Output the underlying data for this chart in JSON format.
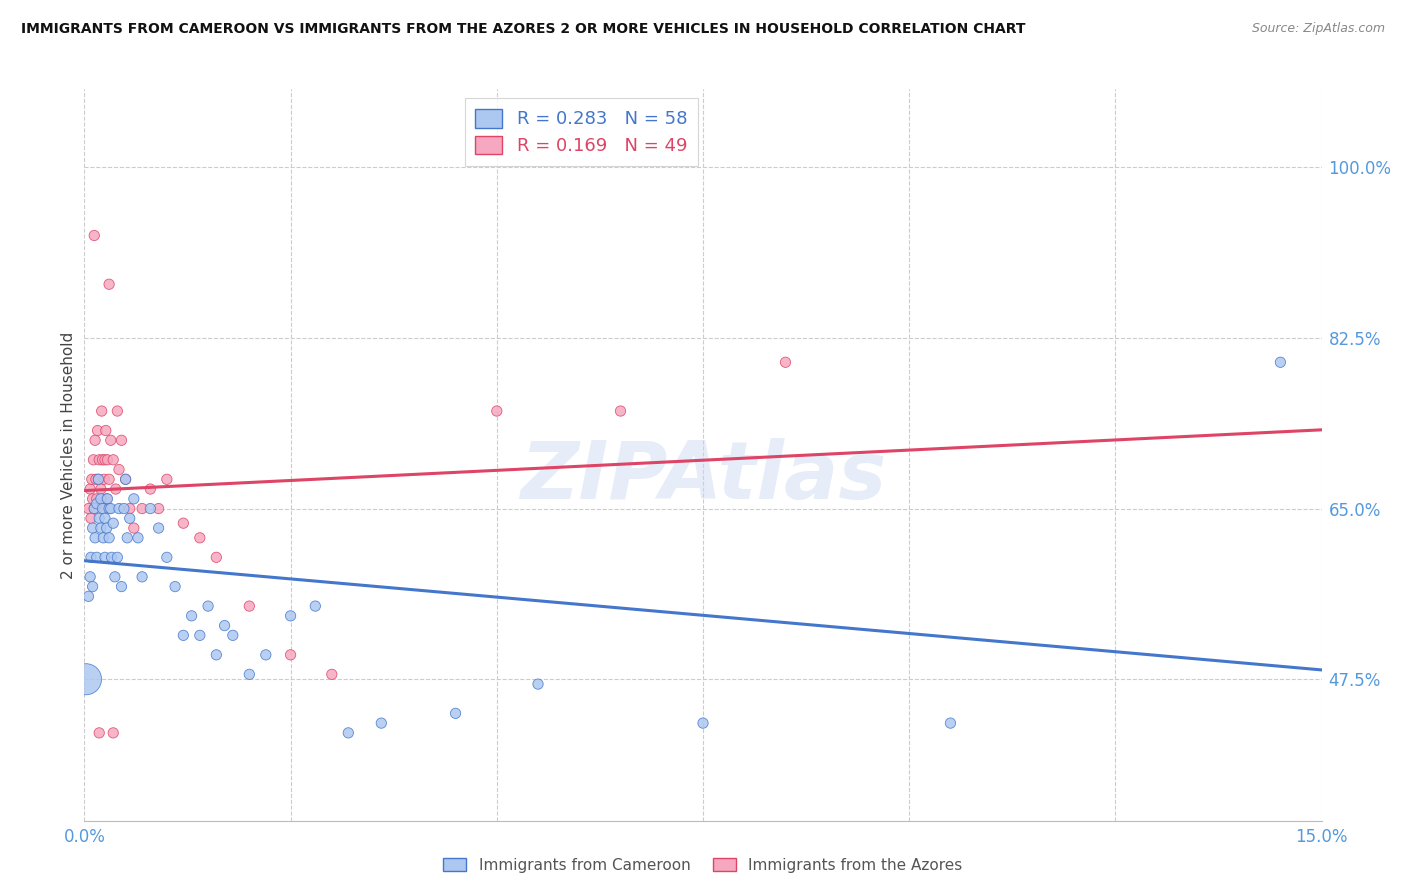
{
  "title": "IMMIGRANTS FROM CAMEROON VS IMMIGRANTS FROM THE AZORES 2 OR MORE VEHICLES IN HOUSEHOLD CORRELATION CHART",
  "source": "Source: ZipAtlas.com",
  "ylabel": "2 or more Vehicles in Household",
  "R1": 0.283,
  "N1": 58,
  "R2": 0.169,
  "N2": 49,
  "xlim": [
    0.0,
    15.0
  ],
  "ylim": [
    33.0,
    108.0
  ],
  "xticks": [
    0.0,
    2.5,
    5.0,
    7.5,
    10.0,
    12.5,
    15.0
  ],
  "xticklabels": [
    "0.0%",
    "",
    "",
    "",
    "",
    "",
    "15.0%"
  ],
  "yticks_right": [
    47.5,
    65.0,
    82.5,
    100.0
  ],
  "yticklabels_right": [
    "47.5%",
    "65.0%",
    "82.5%",
    "100.0%"
  ],
  "blue_color": "#adc8f0",
  "pink_color": "#f5a8c0",
  "blue_line_color": "#4477cc",
  "pink_line_color": "#dd4466",
  "blue_label": "Immigrants from Cameroon",
  "pink_label": "Immigrants from the Azores",
  "axis_color": "#5599dd",
  "tick_color": "#5599dd",
  "watermark": "ZIPAtlas",
  "blue_scatter": [
    [
      0.02,
      47.5
    ],
    [
      0.05,
      56.0
    ],
    [
      0.07,
      58.0
    ],
    [
      0.08,
      60.0
    ],
    [
      0.1,
      63.0
    ],
    [
      0.1,
      57.0
    ],
    [
      0.12,
      65.0
    ],
    [
      0.13,
      62.0
    ],
    [
      0.15,
      65.5
    ],
    [
      0.15,
      60.0
    ],
    [
      0.17,
      68.0
    ],
    [
      0.18,
      64.0
    ],
    [
      0.2,
      66.0
    ],
    [
      0.2,
      63.0
    ],
    [
      0.22,
      65.0
    ],
    [
      0.23,
      62.0
    ],
    [
      0.25,
      64.0
    ],
    [
      0.25,
      60.0
    ],
    [
      0.27,
      63.0
    ],
    [
      0.28,
      66.0
    ],
    [
      0.3,
      65.0
    ],
    [
      0.3,
      62.0
    ],
    [
      0.32,
      65.0
    ],
    [
      0.33,
      60.0
    ],
    [
      0.35,
      63.5
    ],
    [
      0.37,
      58.0
    ],
    [
      0.4,
      60.0
    ],
    [
      0.42,
      65.0
    ],
    [
      0.45,
      57.0
    ],
    [
      0.48,
      65.0
    ],
    [
      0.5,
      68.0
    ],
    [
      0.52,
      62.0
    ],
    [
      0.55,
      64.0
    ],
    [
      0.6,
      66.0
    ],
    [
      0.65,
      62.0
    ],
    [
      0.7,
      58.0
    ],
    [
      0.8,
      65.0
    ],
    [
      0.9,
      63.0
    ],
    [
      1.0,
      60.0
    ],
    [
      1.1,
      57.0
    ],
    [
      1.2,
      52.0
    ],
    [
      1.3,
      54.0
    ],
    [
      1.4,
      52.0
    ],
    [
      1.5,
      55.0
    ],
    [
      1.6,
      50.0
    ],
    [
      1.7,
      53.0
    ],
    [
      1.8,
      52.0
    ],
    [
      2.0,
      48.0
    ],
    [
      2.2,
      50.0
    ],
    [
      2.5,
      54.0
    ],
    [
      2.8,
      55.0
    ],
    [
      3.2,
      42.0
    ],
    [
      3.6,
      43.0
    ],
    [
      4.5,
      44.0
    ],
    [
      5.5,
      47.0
    ],
    [
      7.5,
      43.0
    ],
    [
      10.5,
      43.0
    ],
    [
      14.5,
      80.0
    ]
  ],
  "blue_sizes": [
    500,
    55,
    55,
    55,
    55,
    55,
    55,
    55,
    55,
    55,
    55,
    55,
    55,
    55,
    55,
    55,
    55,
    55,
    55,
    55,
    55,
    55,
    55,
    55,
    55,
    55,
    55,
    55,
    55,
    55,
    55,
    55,
    55,
    55,
    55,
    55,
    55,
    55,
    55,
    55,
    55,
    55,
    55,
    55,
    55,
    55,
    55,
    55,
    55,
    55,
    55,
    55,
    55,
    55,
    55,
    55,
    55,
    55
  ],
  "pink_scatter": [
    [
      0.05,
      65.0
    ],
    [
      0.07,
      67.0
    ],
    [
      0.08,
      64.0
    ],
    [
      0.09,
      68.0
    ],
    [
      0.1,
      66.0
    ],
    [
      0.11,
      70.0
    ],
    [
      0.12,
      65.0
    ],
    [
      0.13,
      72.0
    ],
    [
      0.14,
      68.0
    ],
    [
      0.15,
      66.0
    ],
    [
      0.16,
      73.0
    ],
    [
      0.17,
      68.0
    ],
    [
      0.18,
      70.0
    ],
    [
      0.2,
      67.0
    ],
    [
      0.21,
      75.0
    ],
    [
      0.22,
      70.0
    ],
    [
      0.23,
      65.0
    ],
    [
      0.24,
      68.0
    ],
    [
      0.25,
      70.0
    ],
    [
      0.26,
      73.0
    ],
    [
      0.27,
      66.0
    ],
    [
      0.28,
      70.0
    ],
    [
      0.3,
      68.0
    ],
    [
      0.32,
      72.0
    ],
    [
      0.35,
      70.0
    ],
    [
      0.38,
      67.0
    ],
    [
      0.4,
      75.0
    ],
    [
      0.42,
      69.0
    ],
    [
      0.45,
      72.0
    ],
    [
      0.5,
      68.0
    ],
    [
      0.55,
      65.0
    ],
    [
      0.6,
      63.0
    ],
    [
      0.7,
      65.0
    ],
    [
      0.8,
      67.0
    ],
    [
      0.9,
      65.0
    ],
    [
      1.0,
      68.0
    ],
    [
      1.2,
      63.5
    ],
    [
      1.4,
      62.0
    ],
    [
      1.6,
      60.0
    ],
    [
      2.0,
      55.0
    ],
    [
      2.5,
      50.0
    ],
    [
      3.0,
      48.0
    ],
    [
      0.12,
      93.0
    ],
    [
      0.3,
      88.0
    ],
    [
      5.0,
      75.0
    ],
    [
      6.5,
      75.0
    ],
    [
      8.5,
      80.0
    ],
    [
      0.18,
      42.0
    ],
    [
      0.35,
      42.0
    ]
  ],
  "pink_sizes": [
    55,
    55,
    55,
    55,
    55,
    55,
    55,
    55,
    55,
    55,
    55,
    55,
    55,
    55,
    55,
    55,
    55,
    55,
    55,
    55,
    55,
    55,
    55,
    55,
    55,
    55,
    55,
    55,
    55,
    55,
    55,
    55,
    55,
    55,
    55,
    55,
    55,
    55,
    55,
    55,
    55,
    55,
    55,
    55,
    55,
    55,
    55,
    55,
    55
  ]
}
